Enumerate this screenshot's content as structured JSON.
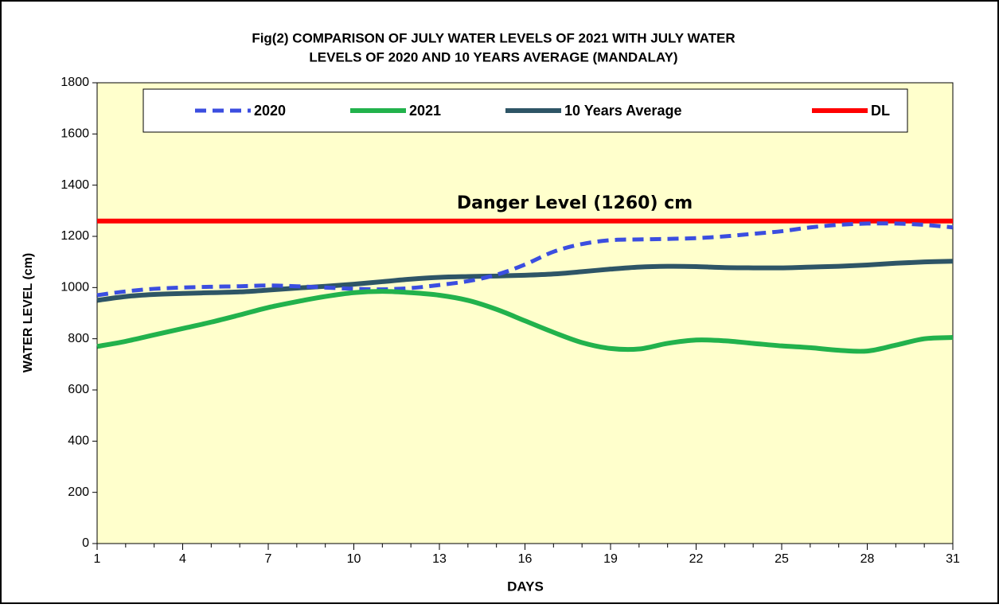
{
  "chart_data": {
    "type": "line",
    "title": [
      "Fig(2)  COMPARISON OF  JULY WATER  LEVELS OF 2021 WITH  JULY WATER",
      "LEVELS OF 2020  AND 10 YEARS  AVERAGE  (MANDALAY)"
    ],
    "xlabel": "DAYS",
    "ylabel": "WATER LEVEL (cm)",
    "annotation": "Danger Level (1260) cm",
    "x": [
      1,
      2,
      3,
      4,
      5,
      6,
      7,
      8,
      9,
      10,
      11,
      12,
      13,
      14,
      15,
      16,
      17,
      18,
      19,
      20,
      21,
      22,
      23,
      24,
      25,
      26,
      27,
      28,
      29,
      30,
      31
    ],
    "xlim": [
      1,
      31
    ],
    "xticks": [
      1,
      4,
      7,
      10,
      13,
      16,
      19,
      22,
      25,
      28,
      31
    ],
    "ylim": [
      0,
      1800
    ],
    "yticks": [
      0,
      200,
      400,
      600,
      800,
      1000,
      1200,
      1400,
      1600,
      1800
    ],
    "background": "#ffffcc",
    "series": [
      {
        "name": "2020",
        "color": "#3b4ee0",
        "dashed": true,
        "values": [
          970,
          985,
          995,
          1000,
          1003,
          1005,
          1008,
          1005,
          1000,
          995,
          993,
          998,
          1010,
          1025,
          1050,
          1090,
          1140,
          1170,
          1185,
          1188,
          1190,
          1193,
          1200,
          1210,
          1220,
          1235,
          1245,
          1250,
          1250,
          1245,
          1235
        ]
      },
      {
        "name": "2021",
        "color": "#22b24c",
        "dashed": false,
        "values": [
          770,
          790,
          815,
          840,
          865,
          893,
          922,
          945,
          965,
          980,
          985,
          980,
          970,
          950,
          915,
          870,
          825,
          785,
          762,
          760,
          782,
          795,
          792,
          782,
          772,
          765,
          755,
          752,
          775,
          800,
          805
        ]
      },
      {
        "name": "10 Years Average",
        "color": "#2e5566",
        "dashed": false,
        "values": [
          950,
          965,
          973,
          977,
          980,
          983,
          990,
          998,
          1005,
          1013,
          1023,
          1033,
          1040,
          1043,
          1045,
          1048,
          1053,
          1062,
          1072,
          1080,
          1083,
          1082,
          1078,
          1077,
          1077,
          1080,
          1083,
          1088,
          1095,
          1100,
          1103
        ]
      },
      {
        "name": "DL",
        "color": "#ff0000",
        "dashed": false,
        "values": [
          1260,
          1260,
          1260,
          1260,
          1260,
          1260,
          1260,
          1260,
          1260,
          1260,
          1260,
          1260,
          1260,
          1260,
          1260,
          1260,
          1260,
          1260,
          1260,
          1260,
          1260,
          1260,
          1260,
          1260,
          1260,
          1260,
          1260,
          1260,
          1260,
          1260,
          1260
        ]
      }
    ]
  }
}
